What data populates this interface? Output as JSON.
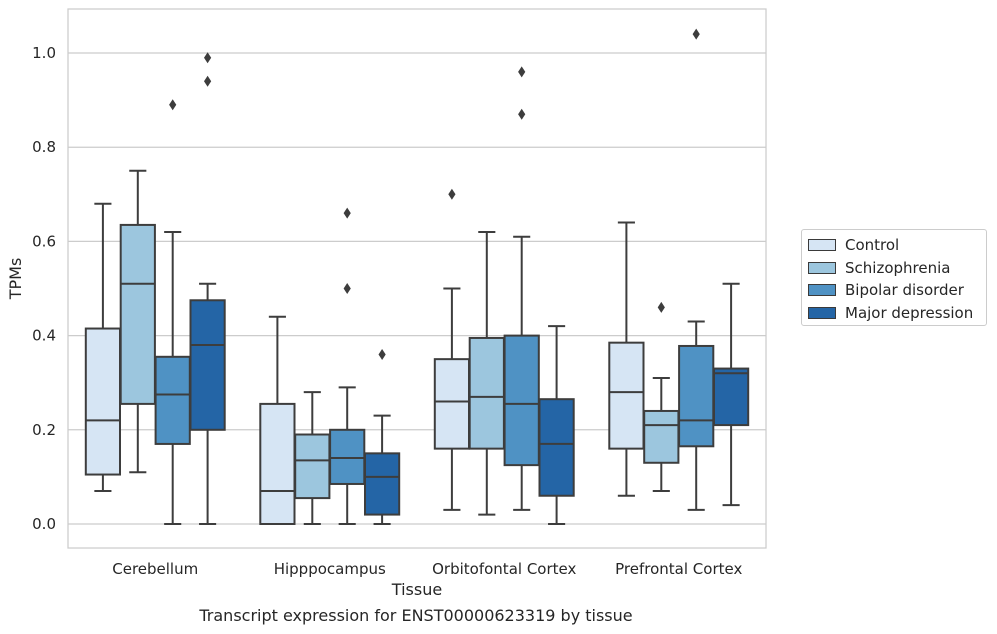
{
  "caption": "Transcript expression for ENST00000623319 by tissue",
  "chart_data": {
    "type": "box",
    "title": "",
    "xlabel": "Tissue",
    "ylabel": "TPMs",
    "ylim": [
      -0.05,
      1.09
    ],
    "yticks": [
      "0.0",
      "0.2",
      "0.4",
      "0.6",
      "0.8",
      "1.0"
    ],
    "ytick_values": [
      0.0,
      0.2,
      0.4,
      0.6,
      0.8,
      1.0
    ],
    "grid": "horizontal",
    "legend_position": "right",
    "categories": [
      "Cerebellum",
      "Hipppocampus",
      "Orbitofontal Cortex",
      "Prefrontal Cortex"
    ],
    "series": [
      {
        "name": "Control",
        "color": "#d6e5f4",
        "boxes": [
          {
            "whislo": 0.07,
            "q1": 0.105,
            "med": 0.22,
            "q3": 0.415,
            "whishi": 0.68,
            "fliers": []
          },
          {
            "whislo": 0.0,
            "q1": 0.0,
            "med": 0.07,
            "q3": 0.255,
            "whishi": 0.44,
            "fliers": []
          },
          {
            "whislo": 0.03,
            "q1": 0.16,
            "med": 0.26,
            "q3": 0.35,
            "whishi": 0.5,
            "fliers": [
              0.7
            ]
          },
          {
            "whislo": 0.06,
            "q1": 0.16,
            "med": 0.28,
            "q3": 0.385,
            "whishi": 0.64,
            "fliers": []
          }
        ]
      },
      {
        "name": "Schizophrenia",
        "color": "#9cc6de",
        "boxes": [
          {
            "whislo": 0.11,
            "q1": 0.255,
            "med": 0.51,
            "q3": 0.635,
            "whishi": 0.75,
            "fliers": []
          },
          {
            "whislo": 0.0,
            "q1": 0.055,
            "med": 0.135,
            "q3": 0.19,
            "whishi": 0.28,
            "fliers": []
          },
          {
            "whislo": 0.02,
            "q1": 0.16,
            "med": 0.27,
            "q3": 0.395,
            "whishi": 0.62,
            "fliers": []
          },
          {
            "whislo": 0.07,
            "q1": 0.13,
            "med": 0.21,
            "q3": 0.24,
            "whishi": 0.31,
            "fliers": [
              0.46
            ]
          }
        ]
      },
      {
        "name": "Bipolar disorder",
        "color": "#4f92c4",
        "boxes": [
          {
            "whislo": 0.0,
            "q1": 0.17,
            "med": 0.275,
            "q3": 0.355,
            "whishi": 0.62,
            "fliers": [
              0.89
            ]
          },
          {
            "whislo": 0.0,
            "q1": 0.085,
            "med": 0.14,
            "q3": 0.2,
            "whishi": 0.29,
            "fliers": [
              0.5,
              0.66
            ]
          },
          {
            "whislo": 0.03,
            "q1": 0.125,
            "med": 0.255,
            "q3": 0.4,
            "whishi": 0.61,
            "fliers": [
              0.87,
              0.96
            ]
          },
          {
            "whislo": 0.03,
            "q1": 0.165,
            "med": 0.22,
            "q3": 0.378,
            "whishi": 0.43,
            "fliers": [
              1.04
            ]
          }
        ]
      },
      {
        "name": "Major depression",
        "color": "#2465a6",
        "boxes": [
          {
            "whislo": 0.0,
            "q1": 0.2,
            "med": 0.38,
            "q3": 0.475,
            "whishi": 0.51,
            "fliers": [
              0.94,
              0.99
            ]
          },
          {
            "whislo": 0.0,
            "q1": 0.02,
            "med": 0.1,
            "q3": 0.15,
            "whishi": 0.23,
            "fliers": [
              0.36
            ]
          },
          {
            "whislo": 0.0,
            "q1": 0.06,
            "med": 0.17,
            "q3": 0.265,
            "whishi": 0.42,
            "fliers": []
          },
          {
            "whislo": 0.04,
            "q1": 0.21,
            "med": 0.32,
            "q3": 0.33,
            "whishi": 0.51,
            "fliers": []
          }
        ]
      }
    ]
  }
}
